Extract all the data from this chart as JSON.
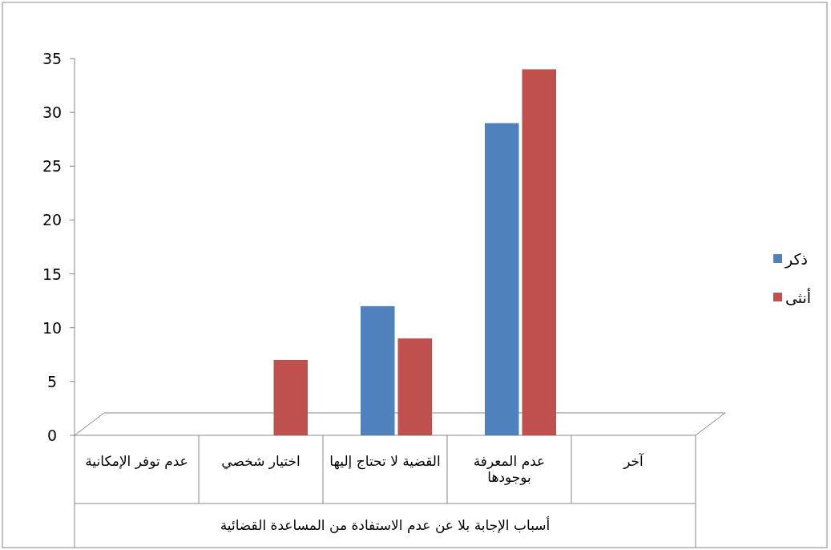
{
  "chart_data": {
    "type": "bar",
    "xlabel": "أسباب الإجابة بلا عن عدم الاستفادة من المساعدة القضائية",
    "categories": [
      "عدم توفر الإمكانية",
      "اختيار شخصي",
      "القضية لا تحتاج إليها",
      "عدم المعرفة بوجودها",
      "آخر"
    ],
    "series": [
      {
        "name": "ذكر",
        "color": "#4f81bd",
        "values": [
          0,
          0,
          12,
          29,
          0
        ]
      },
      {
        "name": "أنثى",
        "color": "#c0504d",
        "values": [
          0,
          7,
          9,
          34,
          0
        ]
      }
    ],
    "ylim": [
      0,
      35
    ],
    "yticks": [
      0,
      5,
      10,
      15,
      20,
      25,
      30,
      35
    ],
    "grid": false,
    "legend": "right"
  }
}
